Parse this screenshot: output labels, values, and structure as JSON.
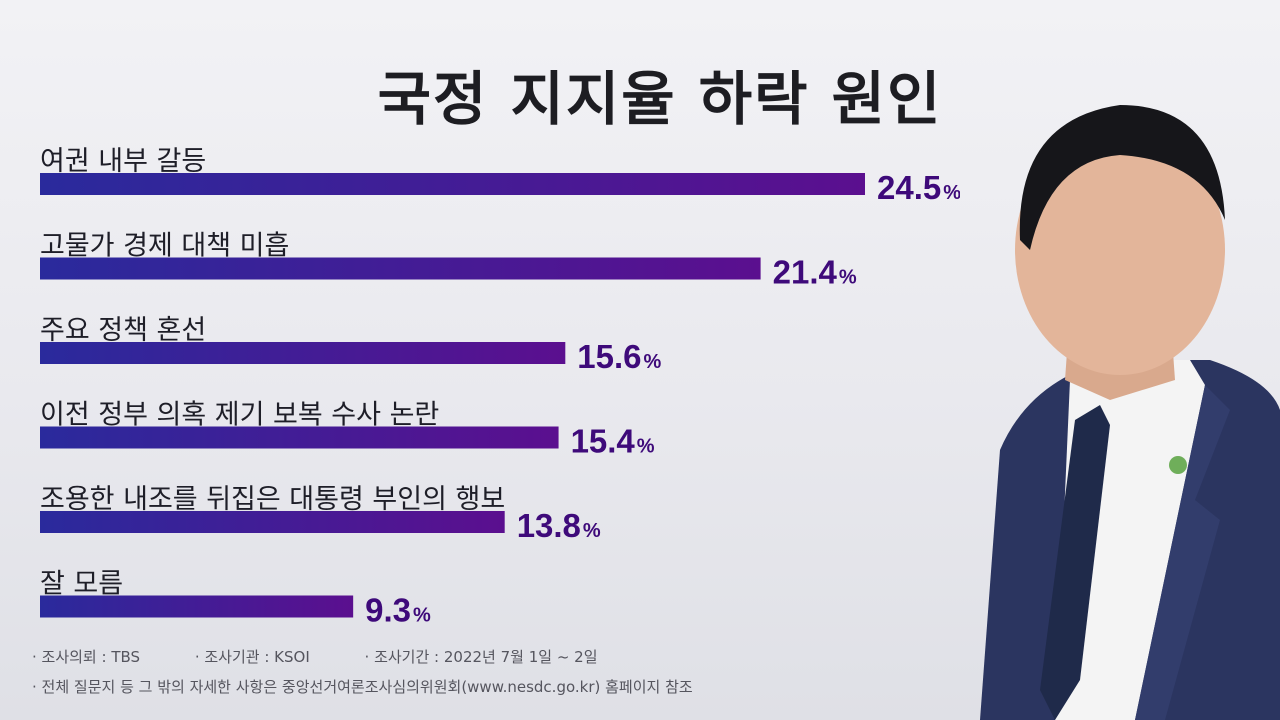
{
  "chart_data": {
    "type": "bar",
    "orientation": "horizontal",
    "title": "국정 지지율 하락 원인",
    "categories": [
      "여권 내부 갈등",
      "고물가 경제 대책 미흡",
      "주요 정책 혼선",
      "이전 정부 의혹 제기 보복 수사 논란",
      "조용한 내조를 뒤집은 대통령 부인의 행보",
      "잘 모름"
    ],
    "values": [
      24.5,
      21.4,
      15.6,
      15.4,
      13.8,
      9.3
    ],
    "value_labels": [
      "24.5",
      "21.4",
      "15.6",
      "15.4",
      "13.8",
      "9.3"
    ],
    "unit": "%",
    "xlim": [
      0,
      24.5
    ],
    "grid": false,
    "legend": "none"
  },
  "footer": {
    "line1": [
      "· 조사의뢰 : TBS",
      "· 조사기관 : KSOI",
      "· 조사기간 : 2022년 7월 1일 ~ 2일"
    ],
    "line2": "· 전체 질문지 등 그 밖의 자세한 사항은 중앙선거여론조사심의위원회(www.nesdc.go.kr) 홈페이지 참조"
  },
  "colors": {
    "bar_start": "#2a2a9c",
    "bar_end": "#5b0f8f",
    "value_text": "#3e0a7a",
    "suit": "#2b3560",
    "shirt": "#f4f4f4",
    "tie": "#1f2a4a"
  },
  "icons": {
    "photo": "person-portrait-icon"
  }
}
